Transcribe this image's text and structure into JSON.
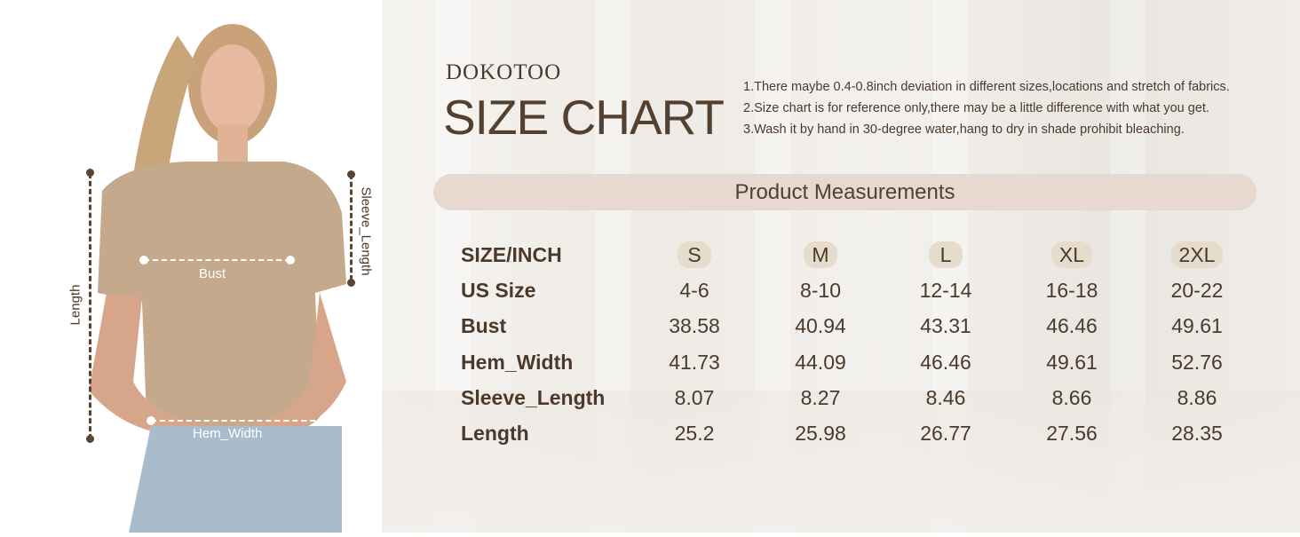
{
  "brand": "DOKOTOO",
  "title": "SIZE CHART",
  "notes": [
    "1.There maybe 0.4-0.8inch deviation in different sizes,locations and stretch of fabrics.",
    "2.Size chart is for reference only,there may be a little difference with what you get.",
    "3.Wash it by hand in 30-degree water,hang to dry in shade prohibit bleaching."
  ],
  "banner": "Product Measurements",
  "diagram": {
    "length": "Length",
    "sleeve": "Sleeve_Length",
    "bust": "Bust",
    "hem": "Hem_Width"
  },
  "colors": {
    "text": "#4b3a2c",
    "banner": "#e7d9cf",
    "pill": "#e6dccb",
    "shirt": "#c4a98c"
  },
  "table": {
    "header": {
      "label": "SIZE/INCH",
      "values": [
        "S",
        "M",
        "L",
        "XL",
        "2XL"
      ]
    },
    "rows": [
      {
        "label": "US Size",
        "values": [
          "4-6",
          "8-10",
          "12-14",
          "16-18",
          "20-22"
        ]
      },
      {
        "label": "Bust",
        "values": [
          "38.58",
          "40.94",
          "43.31",
          "46.46",
          "49.61"
        ]
      },
      {
        "label": "Hem_Width",
        "values": [
          "41.73",
          "44.09",
          "46.46",
          "49.61",
          "52.76"
        ]
      },
      {
        "label": "Sleeve_Length",
        "values": [
          "8.07",
          "8.27",
          "8.46",
          "8.66",
          "8.86"
        ]
      },
      {
        "label": "Length",
        "values": [
          "25.2",
          "25.98",
          "26.77",
          "27.56",
          "28.35"
        ]
      }
    ]
  }
}
